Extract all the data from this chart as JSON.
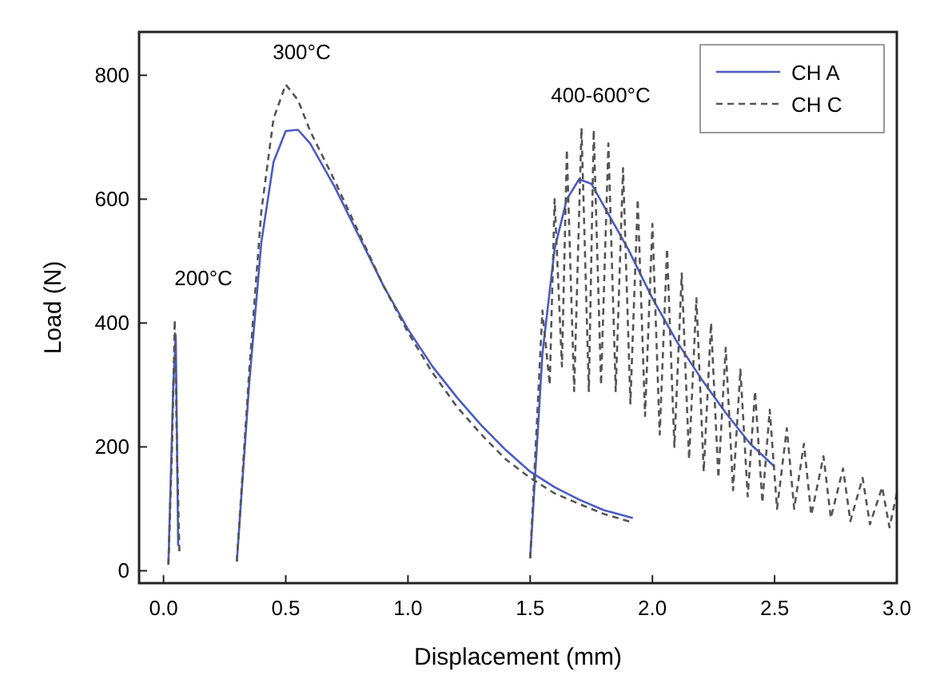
{
  "chart_data": {
    "type": "line",
    "xlabel": "Displacement (mm)",
    "ylabel": "Load (N)",
    "xlim": [
      -0.1,
      3.0
    ],
    "ylim": [
      -20,
      870
    ],
    "xticks": [
      {
        "value": 0,
        "label": "0.0"
      },
      0.5,
      {
        "value": 1,
        "label": "1.0"
      },
      1.5,
      {
        "value": 2,
        "label": "2.0"
      },
      2.5,
      {
        "value": 3,
        "label": "3.0"
      }
    ],
    "yticks": [
      0,
      200,
      400,
      600,
      800
    ],
    "grid": false,
    "legend": "top right",
    "marker": "none",
    "annotations": [
      "200°C",
      "300°C",
      "400-600°C"
    ],
    "series": [
      {
        "name": "CH A",
        "color": "#4a5bc4",
        "line_style": "solid",
        "x": [
          0.02,
          0.04,
          0.05,
          0.06,
          null,
          0.3,
          0.35,
          0.4,
          0.45,
          0.5,
          0.55,
          0.6,
          0.7,
          0.8,
          0.9,
          1.0,
          1.1,
          1.2,
          1.3,
          1.4,
          1.5,
          1.6,
          1.7,
          1.8,
          1.92,
          null,
          1.5,
          1.55,
          1.6,
          1.65,
          1.7,
          1.75,
          1.8,
          1.9,
          2.0,
          2.1,
          2.2,
          2.3,
          2.4,
          2.5
        ],
        "values": [
          10,
          300,
          380,
          40,
          null,
          15,
          300,
          530,
          660,
          710,
          712,
          690,
          620,
          540,
          460,
          390,
          330,
          280,
          235,
          195,
          160,
          135,
          115,
          98,
          85,
          null,
          20,
          350,
          520,
          600,
          632,
          625,
          590,
          520,
          440,
          370,
          310,
          255,
          205,
          168
        ]
      },
      {
        "name": "CH C",
        "color": "#555555",
        "line_style": "dashed",
        "x": [
          0.02,
          0.035,
          0.046,
          0.055,
          0.065,
          null,
          0.3,
          0.35,
          0.4,
          0.45,
          0.5,
          0.55,
          0.6,
          0.7,
          0.8,
          0.9,
          1.0,
          1.1,
          1.2,
          1.3,
          1.4,
          1.5,
          1.6,
          1.7,
          1.8,
          1.92,
          null,
          1.5,
          1.55,
          1.58,
          1.6,
          1.63,
          1.65,
          1.68,
          1.71,
          1.74,
          1.76,
          1.79,
          1.82,
          1.85,
          1.88,
          1.91,
          1.94,
          1.97,
          2.0,
          2.03,
          2.06,
          2.09,
          2.12,
          2.15,
          2.18,
          2.21,
          2.24,
          2.27,
          2.3,
          2.33,
          2.36,
          2.39,
          2.42,
          2.45,
          2.48,
          2.51,
          2.55,
          2.58,
          2.62,
          2.65,
          2.7,
          2.73,
          2.78,
          2.81,
          2.86,
          2.89,
          2.94,
          2.97,
          3.0
        ],
        "values": [
          10,
          200,
          405,
          200,
          30,
          null,
          15,
          320,
          580,
          730,
          785,
          760,
          710,
          630,
          545,
          460,
          385,
          320,
          265,
          220,
          180,
          150,
          125,
          108,
          92,
          78,
          null,
          20,
          420,
          300,
          600,
          330,
          680,
          290,
          715,
          290,
          712,
          300,
          690,
          290,
          650,
          270,
          600,
          250,
          560,
          220,
          520,
          200,
          480,
          180,
          440,
          160,
          400,
          150,
          360,
          130,
          325,
          120,
          290,
          110,
          260,
          100,
          230,
          100,
          205,
          90,
          185,
          85,
          165,
          80,
          150,
          75,
          135,
          70,
          125
        ]
      }
    ]
  }
}
